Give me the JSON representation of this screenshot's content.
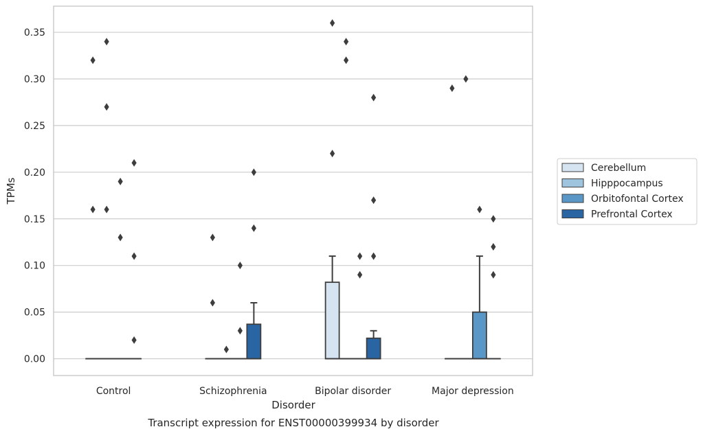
{
  "chart_data": {
    "type": "box",
    "title": "",
    "caption": "Transcript expression for ENST00000399934 by disorder",
    "xlabel": "Disorder",
    "ylabel": "TPMs",
    "ylim": [
      -0.018,
      0.378
    ],
    "yticks": [
      0.0,
      0.05,
      0.1,
      0.15,
      0.2,
      0.25,
      0.3,
      0.35
    ],
    "ytick_labels": [
      "0.00",
      "0.05",
      "0.10",
      "0.15",
      "0.20",
      "0.25",
      "0.30",
      "0.35"
    ],
    "grid": "horizontal",
    "legend_position": "right",
    "categories": [
      "Control",
      "Schizophrenia",
      "Bipolar disorder",
      "Major depression"
    ],
    "series": [
      {
        "name": "Cerebellum",
        "color": "#d6e4f2",
        "boxes": [
          {
            "q1": 0,
            "median": 0,
            "q3": 0,
            "whisker_low": 0,
            "whisker_high": 0,
            "outliers": [
              0.16,
              0.32
            ]
          },
          {
            "q1": 0,
            "median": 0,
            "q3": 0,
            "whisker_low": 0,
            "whisker_high": 0,
            "outliers": [
              0.06,
              0.13
            ]
          },
          {
            "q1": 0,
            "median": 0,
            "q3": 0.082,
            "whisker_low": 0,
            "whisker_high": 0.11,
            "outliers": [
              0.22,
              0.36
            ]
          },
          {
            "q1": 0,
            "median": 0,
            "q3": 0,
            "whisker_low": 0,
            "whisker_high": 0,
            "outliers": [
              0.29
            ]
          }
        ]
      },
      {
        "name": "Hipppocampus",
        "color": "#9fc4de",
        "boxes": [
          {
            "q1": 0,
            "median": 0,
            "q3": 0,
            "whisker_low": 0,
            "whisker_high": 0,
            "outliers": [
              0.16,
              0.27,
              0.34
            ]
          },
          {
            "q1": 0,
            "median": 0,
            "q3": 0,
            "whisker_low": 0,
            "whisker_high": 0,
            "outliers": [
              0.01
            ]
          },
          {
            "q1": 0,
            "median": 0,
            "q3": 0,
            "whisker_low": 0,
            "whisker_high": 0,
            "outliers": [
              0.32,
              0.34
            ]
          },
          {
            "q1": 0,
            "median": 0,
            "q3": 0,
            "whisker_low": 0,
            "whisker_high": 0,
            "outliers": [
              0.3
            ]
          }
        ]
      },
      {
        "name": "Orbitofontal Cortex",
        "color": "#5a96c6",
        "boxes": [
          {
            "q1": 0,
            "median": 0,
            "q3": 0,
            "whisker_low": 0,
            "whisker_high": 0,
            "outliers": [
              0.13,
              0.19
            ]
          },
          {
            "q1": 0,
            "median": 0,
            "q3": 0,
            "whisker_low": 0,
            "whisker_high": 0,
            "outliers": [
              0.03,
              0.1
            ]
          },
          {
            "q1": 0,
            "median": 0,
            "q3": 0,
            "whisker_low": 0,
            "whisker_high": 0,
            "outliers": [
              0.09,
              0.11
            ]
          },
          {
            "q1": 0,
            "median": 0,
            "q3": 0.05,
            "whisker_low": 0,
            "whisker_high": 0.11,
            "outliers": [
              0.16
            ]
          }
        ]
      },
      {
        "name": "Prefrontal Cortex",
        "color": "#2a65a3",
        "boxes": [
          {
            "q1": 0,
            "median": 0,
            "q3": 0,
            "whisker_low": 0,
            "whisker_high": 0,
            "outliers": [
              0.02,
              0.11,
              0.21
            ]
          },
          {
            "q1": 0,
            "median": 0,
            "q3": 0.037,
            "whisker_low": 0,
            "whisker_high": 0.06,
            "outliers": [
              0.14,
              0.2
            ]
          },
          {
            "q1": 0,
            "median": 0,
            "q3": 0.022,
            "whisker_low": 0,
            "whisker_high": 0.03,
            "outliers": [
              0.11,
              0.17,
              0.28
            ]
          },
          {
            "q1": 0,
            "median": 0,
            "q3": 0,
            "whisker_low": 0,
            "whisker_high": 0,
            "outliers": [
              0.09,
              0.12,
              0.15
            ]
          }
        ]
      }
    ]
  },
  "colors": {
    "edge": "#3d3d3d",
    "grid": "#cccccc",
    "spine": "#cccccc",
    "text": "#262626"
  }
}
